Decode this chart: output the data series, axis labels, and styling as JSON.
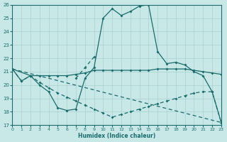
{
  "xlabel": "Humidex (Indice chaleur)",
  "xlim": [
    0,
    23
  ],
  "ylim": [
    17,
    26
  ],
  "yticks": [
    17,
    18,
    19,
    20,
    21,
    22,
    23,
    24,
    25,
    26
  ],
  "xticks": [
    0,
    1,
    2,
    3,
    4,
    5,
    6,
    7,
    8,
    9,
    10,
    11,
    12,
    13,
    14,
    15,
    16,
    17,
    18,
    19,
    20,
    21,
    22,
    23
  ],
  "bg_color": "#c8e8e8",
  "line_color": "#1a6b6b",
  "grid_color": "#a8d0d0",
  "line1_x": [
    0,
    1,
    2,
    3,
    4,
    5,
    6,
    7,
    8,
    9,
    10,
    11,
    12,
    13,
    14,
    15,
    16,
    17,
    18,
    19,
    20,
    21,
    22,
    23
  ],
  "line1_y": [
    21.2,
    20.3,
    20.7,
    20.0,
    19.5,
    18.3,
    18.1,
    18.2,
    20.5,
    21.3,
    25.0,
    25.7,
    25.2,
    25.5,
    25.9,
    26.0,
    22.5,
    21.6,
    21.7,
    21.5,
    21.0,
    20.7,
    19.5,
    17.2
  ],
  "line2_x": [
    0,
    2,
    3,
    4,
    5,
    6,
    7,
    8,
    9,
    10,
    11,
    12,
    13,
    14,
    15,
    16,
    17,
    18,
    19,
    20,
    21,
    22,
    23
  ],
  "line2_y": [
    21.2,
    20.7,
    20.7,
    20.7,
    20.7,
    20.7,
    20.8,
    20.9,
    21.1,
    21.1,
    21.1,
    21.1,
    21.1,
    21.1,
    21.1,
    21.2,
    21.2,
    21.2,
    21.2,
    21.1,
    21.0,
    20.9,
    20.8
  ],
  "line3_x": [
    0,
    23
  ],
  "line3_y": [
    21.2,
    17.2
  ],
  "line4_x": [
    0,
    1,
    2,
    3,
    4,
    5,
    6,
    7,
    8,
    9,
    10,
    11,
    12,
    13,
    14,
    15,
    16,
    17,
    18,
    19,
    20,
    21,
    22,
    23
  ],
  "line4_y": [
    21.2,
    20.3,
    20.7,
    20.2,
    19.8,
    19.4,
    19.1,
    18.8,
    18.5,
    18.2,
    17.9,
    17.6,
    17.8,
    18.0,
    18.2,
    18.4,
    18.6,
    18.8,
    19.0,
    19.2,
    19.4,
    19.5,
    19.5,
    17.2
  ],
  "line5_x": [
    7,
    8,
    9
  ],
  "line5_y": [
    20.5,
    21.3,
    22.1
  ]
}
